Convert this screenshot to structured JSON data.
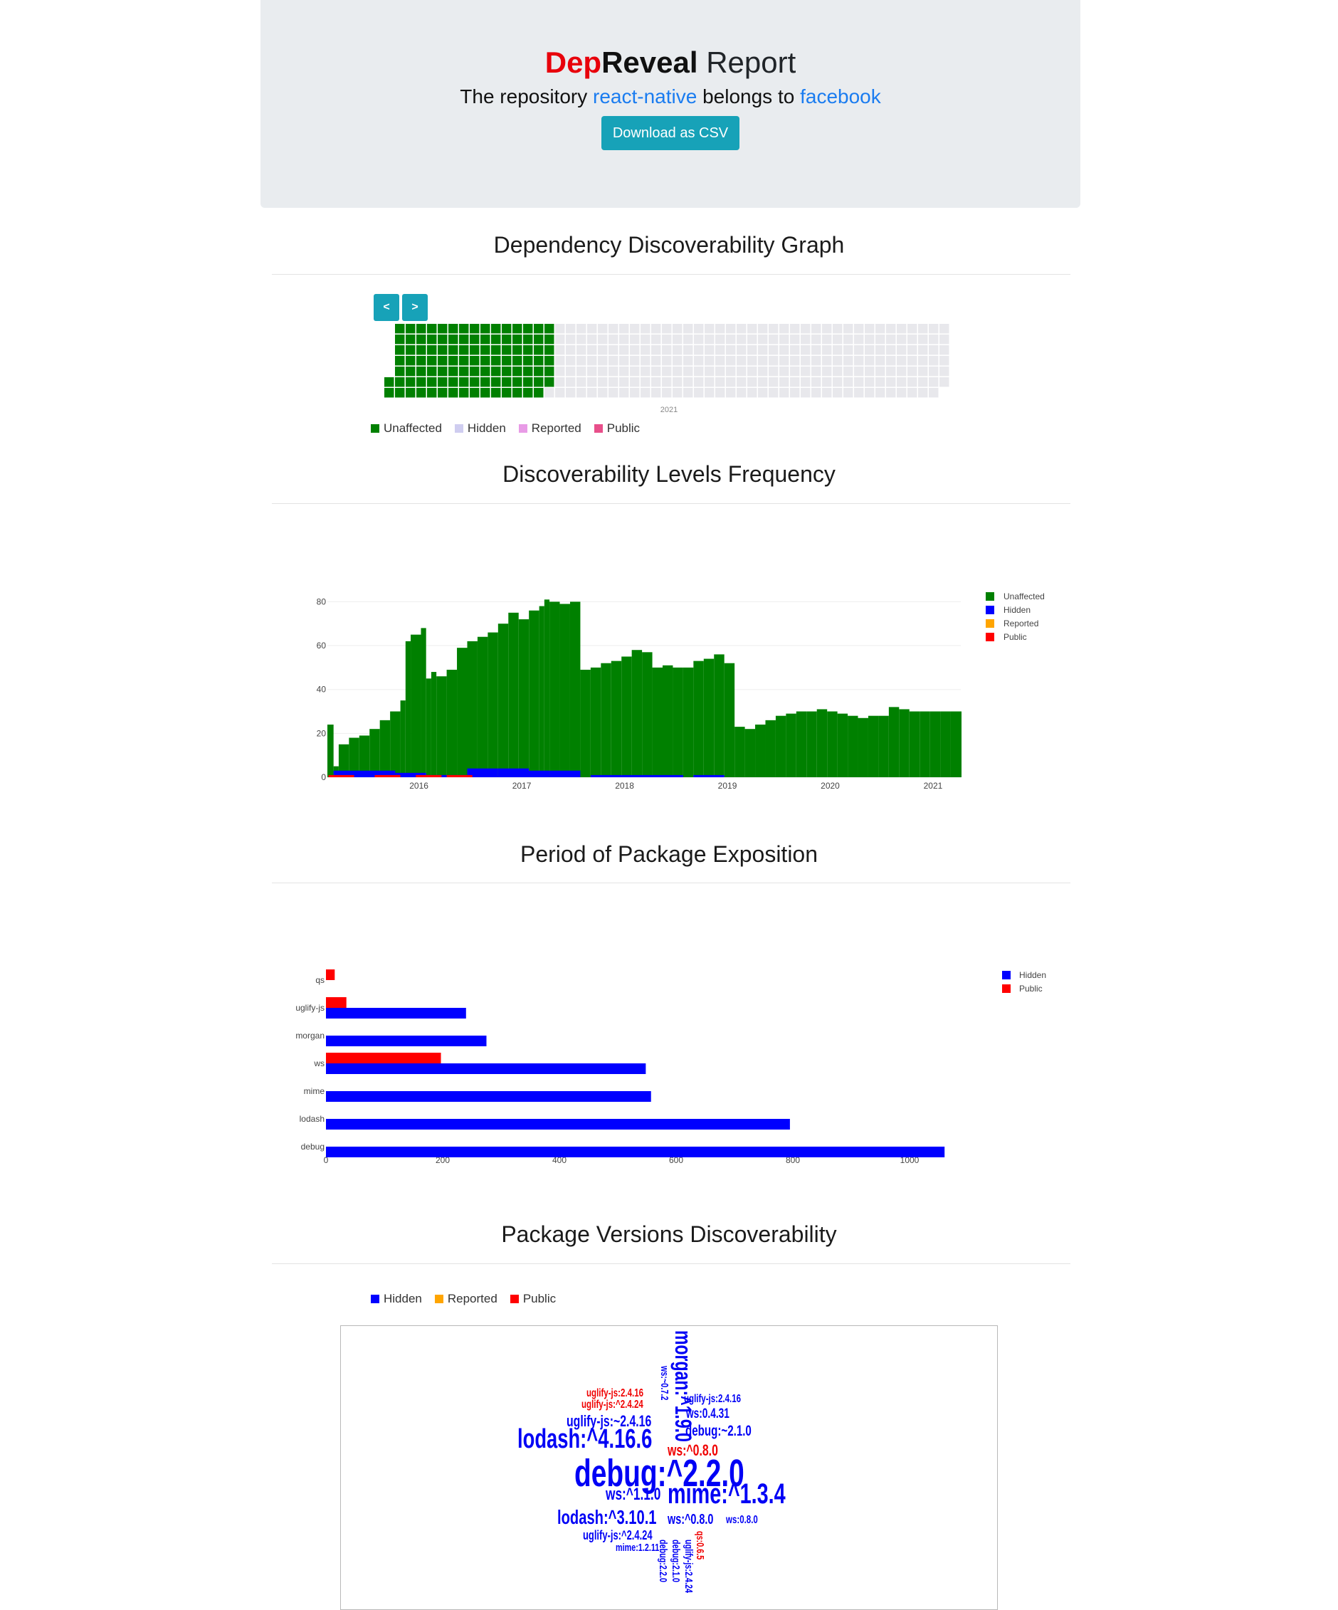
{
  "header": {
    "title_dep": "Dep",
    "title_reveal": "Reveal",
    "title_report": " Report",
    "lead_prefix": "The repository ",
    "repo_name": "react-native",
    "lead_middle": " belongs to ",
    "owner_name": "facebook",
    "download_label": "Download as CSV"
  },
  "colors": {
    "unaffected": "#008000",
    "hidden": "#0000ff",
    "reported": "#ffa500",
    "public": "#ff0000",
    "accent": "#17a2b8",
    "link": "#1a7cf0",
    "empty_cell": "#e8e8ec"
  },
  "sections": {
    "graph_title": "Dependency Discoverability Graph",
    "frequency_title": "Discoverability Levels Frequency",
    "exposition_title": "Period of Package Exposition",
    "versions_title": "Package Versions Discoverability"
  },
  "calendar": {
    "prev_label": "<",
    "next_label": ">",
    "year_label": "2021",
    "legend": [
      {
        "label": "Unaffected",
        "color": "#008000"
      },
      {
        "label": "Hidden",
        "color": "#cfcdf0"
      },
      {
        "label": "Reported",
        "color": "#e89be6"
      },
      {
        "label": "Public",
        "color": "#e84f8a"
      }
    ],
    "filled_weeks": 15,
    "total_weeks": 53
  },
  "chart_data": [
    {
      "type": "bar",
      "stacked": true,
      "x_ticks": [
        "2016",
        "2017",
        "2018",
        "2019",
        "2020",
        "2021"
      ],
      "y_ticks": [
        "0",
        "20",
        "40",
        "60",
        "80"
      ],
      "ylim": [
        0,
        85
      ],
      "legend_placement": "top-right",
      "series": [
        {
          "name": "Unaffected",
          "color": "#008000",
          "points": [
            [
              2015.14,
              24
            ],
            [
              2015.2,
              5
            ],
            [
              2015.25,
              15
            ],
            [
              2015.35,
              18
            ],
            [
              2015.45,
              19
            ],
            [
              2015.55,
              22
            ],
            [
              2015.65,
              26
            ],
            [
              2015.75,
              30
            ],
            [
              2015.85,
              35
            ],
            [
              2015.9,
              62
            ],
            [
              2015.95,
              65
            ],
            [
              2016.05,
              68
            ],
            [
              2016.1,
              45
            ],
            [
              2016.15,
              48
            ],
            [
              2016.2,
              46
            ],
            [
              2016.3,
              49
            ],
            [
              2016.4,
              59
            ],
            [
              2016.5,
              62
            ],
            [
              2016.6,
              64
            ],
            [
              2016.7,
              66
            ],
            [
              2016.8,
              70
            ],
            [
              2016.9,
              75
            ],
            [
              2017.0,
              72
            ],
            [
              2017.1,
              76
            ],
            [
              2017.2,
              78
            ],
            [
              2017.25,
              81
            ],
            [
              2017.3,
              80
            ],
            [
              2017.4,
              79
            ],
            [
              2017.5,
              80
            ],
            [
              2017.6,
              49
            ],
            [
              2017.7,
              50
            ],
            [
              2017.8,
              52
            ],
            [
              2017.9,
              53
            ],
            [
              2018.0,
              55
            ],
            [
              2018.1,
              58
            ],
            [
              2018.2,
              57
            ],
            [
              2018.3,
              50
            ],
            [
              2018.4,
              51
            ],
            [
              2018.5,
              50
            ],
            [
              2018.6,
              50
            ],
            [
              2018.7,
              53
            ],
            [
              2018.8,
              54
            ],
            [
              2018.9,
              56
            ],
            [
              2019.0,
              52
            ],
            [
              2019.1,
              23
            ],
            [
              2019.2,
              22
            ],
            [
              2019.3,
              24
            ],
            [
              2019.4,
              26
            ],
            [
              2019.5,
              28
            ],
            [
              2019.6,
              29
            ],
            [
              2019.7,
              30
            ],
            [
              2019.8,
              30
            ],
            [
              2019.9,
              31
            ],
            [
              2020.0,
              30
            ],
            [
              2020.1,
              29
            ],
            [
              2020.2,
              28
            ],
            [
              2020.3,
              27
            ],
            [
              2020.4,
              28
            ],
            [
              2020.5,
              28
            ],
            [
              2020.6,
              32
            ],
            [
              2020.7,
              31
            ],
            [
              2020.8,
              30
            ],
            [
              2020.9,
              30
            ],
            [
              2021.0,
              30
            ],
            [
              2021.1,
              30
            ],
            [
              2021.2,
              30
            ],
            [
              2021.3,
              30
            ]
          ]
        },
        {
          "name": "Hidden",
          "color": "#0000ff",
          "points": [
            [
              2015.2,
              3
            ],
            [
              2015.5,
              3
            ],
            [
              2015.8,
              2
            ],
            [
              2016.0,
              1
            ],
            [
              2016.2,
              1
            ],
            [
              2016.5,
              4
            ],
            [
              2016.8,
              4
            ],
            [
              2017.0,
              3
            ],
            [
              2017.3,
              3
            ],
            [
              2017.7,
              1
            ],
            [
              2018.0,
              1
            ],
            [
              2018.3,
              1
            ],
            [
              2018.7,
              1
            ]
          ]
        },
        {
          "name": "Reported",
          "color": "#ffa500",
          "points": []
        },
        {
          "name": "Public",
          "color": "#ff0000",
          "points": [
            [
              2015.15,
              1
            ],
            [
              2015.6,
              1
            ],
            [
              2016.0,
              1
            ],
            [
              2016.3,
              1
            ]
          ]
        }
      ]
    },
    {
      "type": "bar",
      "orientation": "horizontal",
      "categories": [
        "qs",
        "uglify-js",
        "morgan",
        "ws",
        "mime",
        "lodash",
        "debug"
      ],
      "x_ticks": [
        "0",
        "200",
        "400",
        "600",
        "800",
        "1000"
      ],
      "xlim": [
        0,
        1080
      ],
      "legend_placement": "top-right",
      "series": [
        {
          "name": "Hidden",
          "color": "#0000ff",
          "values": [
            0,
            240,
            275,
            548,
            557,
            795,
            1060
          ]
        },
        {
          "name": "Public",
          "color": "#ff0000",
          "values": [
            15,
            35,
            0,
            197,
            0,
            0,
            0
          ]
        }
      ]
    }
  ],
  "wordcloud": {
    "legend": [
      {
        "label": "Hidden",
        "color": "#0000ff"
      },
      {
        "label": "Reported",
        "color": "#ffa500"
      },
      {
        "label": "Public",
        "color": "#ff0000"
      }
    ],
    "words": [
      {
        "text": "morgan:^1.9.0",
        "color": "#0000f5",
        "size": 32
      },
      {
        "text": "ws:~0.7.2",
        "color": "#0000f5",
        "size": 15
      },
      {
        "text": "uglify-js:2.4.16",
        "color": "#f00000",
        "size": 16
      },
      {
        "text": "uglify-js:^2.4.24",
        "color": "#f00000",
        "size": 16
      },
      {
        "text": "uglify-js:2.4.16",
        "color": "#0000f5",
        "size": 16
      },
      {
        "text": "ws:0.4.31",
        "color": "#0000f5",
        "size": 19
      },
      {
        "text": "uglify-js:~2.4.16",
        "color": "#0000f5",
        "size": 22
      },
      {
        "text": "debug:~2.1.0",
        "color": "#0000f5",
        "size": 21
      },
      {
        "text": "lodash:^4.16.6",
        "color": "#0000f5",
        "size": 38
      },
      {
        "text": "ws:^0.8.0",
        "color": "#f00000",
        "size": 22
      },
      {
        "text": "debug:^2.2.0",
        "color": "#0000f5",
        "size": 54
      },
      {
        "text": "ws:^1.1.0",
        "color": "#0000f5",
        "size": 24
      },
      {
        "text": "mime:^1.3.4",
        "color": "#0000f5",
        "size": 40
      },
      {
        "text": "lodash:^3.10.1",
        "color": "#0000f5",
        "size": 28
      },
      {
        "text": "ws:^0.8.0",
        "color": "#0000f5",
        "size": 20
      },
      {
        "text": "ws:0.8.0",
        "color": "#0000f5",
        "size": 16
      },
      {
        "text": "uglify-js:^2.4.24",
        "color": "#0000f5",
        "size": 18
      },
      {
        "text": "mime:1.2.11",
        "color": "#0000f5",
        "size": 15
      },
      {
        "text": "debug:2.2.0",
        "color": "#0000f5",
        "size": 15
      },
      {
        "text": "debug:2.1.0",
        "color": "#0000f5",
        "size": 15
      },
      {
        "text": "uglify-js:2.4.24",
        "color": "#0000f5",
        "size": 15
      },
      {
        "text": "qs:0.6.5",
        "color": "#f00000",
        "size": 15
      }
    ]
  }
}
